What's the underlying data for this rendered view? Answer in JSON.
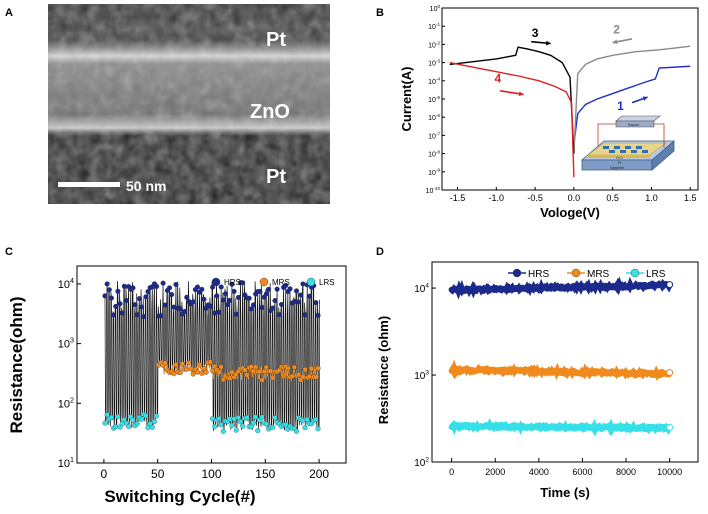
{
  "figure": {
    "panel_labels": [
      "A",
      "B",
      "C",
      "D"
    ]
  },
  "chart_data": [
    {
      "panel": "A",
      "type": "other",
      "description_kind": "TEM cross-section micrograph",
      "layers": [
        "Pt",
        "ZnO",
        "Pt"
      ],
      "scale_bar": "50 nm"
    },
    {
      "panel": "B",
      "type": "line",
      "xlabel": "Vologe(V)",
      "ylabel": "Current(A)",
      "yscale": "log",
      "xlim": [
        -1.7,
        1.6
      ],
      "ylim_exp": [
        -10,
        0
      ],
      "xticks": [
        "-1.5",
        "-1.0",
        "-0.5",
        "0.0",
        "0.5",
        "1.0",
        "1.5"
      ],
      "ytick_exps": [
        0,
        -1,
        -2,
        -3,
        -4,
        -5,
        -6,
        -7,
        -8,
        -9,
        -10
      ],
      "ytick_base": "10",
      "series": [
        {
          "name": "1",
          "color": "#1f2fc8",
          "x": [
            0.0,
            0.05,
            0.15,
            0.3,
            0.5,
            0.7,
            0.9,
            1.05,
            1.1,
            1.5
          ],
          "log_y": [
            -7.5,
            -5.8,
            -5.3,
            -5.0,
            -4.7,
            -4.4,
            -4.1,
            -3.9,
            -3.3,
            -3.2
          ]
        },
        {
          "name": "2",
          "color": "#8a8a8a",
          "x": [
            1.5,
            1.3,
            1.1,
            0.8,
            0.5,
            0.3,
            0.15,
            0.05,
            0.0
          ],
          "log_y": [
            -2.1,
            -2.2,
            -2.3,
            -2.4,
            -2.6,
            -2.8,
            -3.1,
            -3.6,
            -8.0
          ]
        },
        {
          "name": "3",
          "color": "#000000",
          "x": [
            0.0,
            -0.05,
            -0.15,
            -0.3,
            -0.45,
            -0.6,
            -0.72,
            -0.75,
            -1.0,
            -1.3,
            -1.6
          ],
          "log_y": [
            -8.0,
            -3.8,
            -3.0,
            -2.6,
            -2.4,
            -2.25,
            -2.15,
            -2.6,
            -2.8,
            -2.95,
            -3.1
          ]
        },
        {
          "name": "4",
          "color": "#e02020",
          "x": [
            -1.6,
            -1.3,
            -1.0,
            -0.7,
            -0.45,
            -0.25,
            -0.1,
            -0.03,
            0.0
          ],
          "log_y": [
            -3.0,
            -3.25,
            -3.5,
            -3.75,
            -4.0,
            -4.3,
            -4.6,
            -5.2,
            -9.3
          ]
        }
      ],
      "inset": {
        "description_kind": "device schematic",
        "labels": [
          "Source",
          "ZnO",
          "Pt",
          "Sapphire"
        ]
      }
    },
    {
      "panel": "C",
      "type": "scatter",
      "xlabel": "Switching Cycle(#)",
      "ylabel": "Resistance(ohm)",
      "yscale": "log",
      "xlim": [
        -25,
        225
      ],
      "ylim_exp": [
        1,
        4.3
      ],
      "xticks": [
        "0",
        "50",
        "100",
        "150",
        "200"
      ],
      "ytick_exps": [
        1,
        2,
        3,
        4
      ],
      "ytick_base": "10",
      "legend": [
        "HRS",
        "MRS",
        "LRS"
      ],
      "series": [
        {
          "name": "HRS",
          "color": "#1c2a8c",
          "cycle_ranges": [
            [
              1,
              50
            ],
            [
              51,
              100
            ],
            [
              101,
              200
            ]
          ],
          "log_mean": [
            3.75,
            3.75,
            3.75
          ],
          "log_spread": 0.3
        },
        {
          "name": "MRS",
          "color": "#f08a1c",
          "cycle_ranges": [
            [
              51,
              100
            ],
            [
              101,
              200
            ]
          ],
          "log_mean": [
            2.6,
            2.5
          ],
          "log_spread": 0.12
        },
        {
          "name": "LRS",
          "color": "#36e0e8",
          "cycle_ranges": [
            [
              1,
              50
            ],
            [
              101,
              200
            ]
          ],
          "log_mean": [
            1.7,
            1.65
          ],
          "log_spread": 0.12
        }
      ]
    },
    {
      "panel": "D",
      "type": "scatter",
      "xlabel": "Time (s)",
      "ylabel": "Resistance (ohm)",
      "yscale": "log",
      "xlim": [
        -900,
        11300
      ],
      "ylim_exp": [
        2,
        4.3
      ],
      "xticks": [
        "0",
        "2000",
        "4000",
        "6000",
        "8000",
        "10000"
      ],
      "ytick_exps": [
        2,
        3,
        4
      ],
      "ytick_base": "10",
      "legend": [
        "HRS",
        "MRS",
        "LRS"
      ],
      "series": [
        {
          "name": "HRS",
          "color": "#1c2a8c",
          "t_start": 0,
          "t_end": 10000,
          "value_start": 9500,
          "value_end": 10800
        },
        {
          "name": "MRS",
          "color": "#f08a1c",
          "t_start": 0,
          "t_end": 10000,
          "value_start": 1150,
          "value_end": 1030
        },
        {
          "name": "LRS",
          "color": "#36e0e8",
          "t_start": 0,
          "t_end": 10000,
          "value_start": 260,
          "value_end": 245
        }
      ]
    }
  ]
}
